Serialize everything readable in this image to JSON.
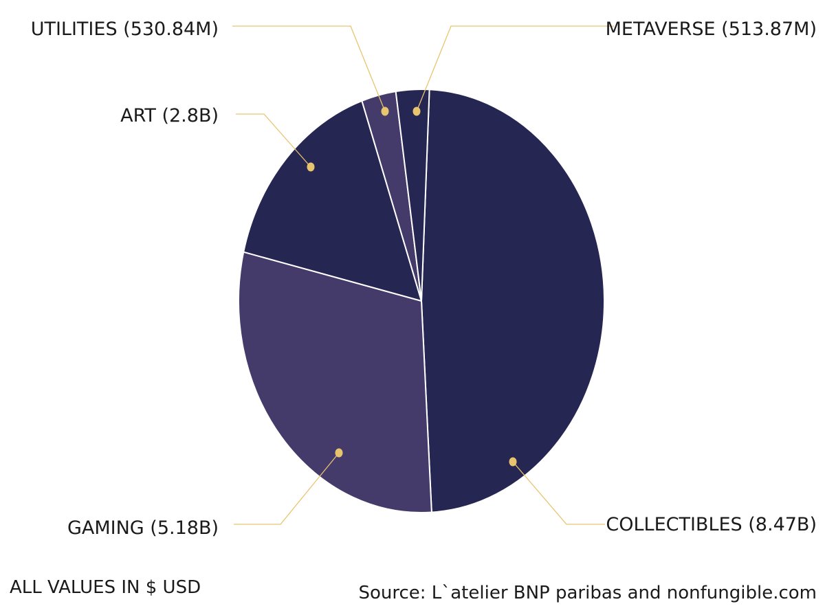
{
  "chart_data": {
    "type": "pie",
    "slices": [
      {
        "label": "COLLECTIBLES (8.47B)",
        "value": 8.47,
        "color": "#262652"
      },
      {
        "label": "GAMING (5.18B)",
        "value": 5.18,
        "color": "#443b6b"
      },
      {
        "label": "ART (2.8B)",
        "value": 2.8,
        "color": "#262652"
      },
      {
        "label": "UTILITIES (530.84M)",
        "value": 0.53084,
        "color": "#443b6b"
      },
      {
        "label": "METAVERSE (513.87M)",
        "value": 0.51387,
        "color": "#262652"
      }
    ],
    "units": "$ USD",
    "accent_color": "#e8c46f",
    "separator_color": "#ffffff"
  },
  "footer": {
    "note": "ALL VALUES IN $ USD",
    "source": "Source: L`atelier BNP paribas and nonfungible.com"
  }
}
